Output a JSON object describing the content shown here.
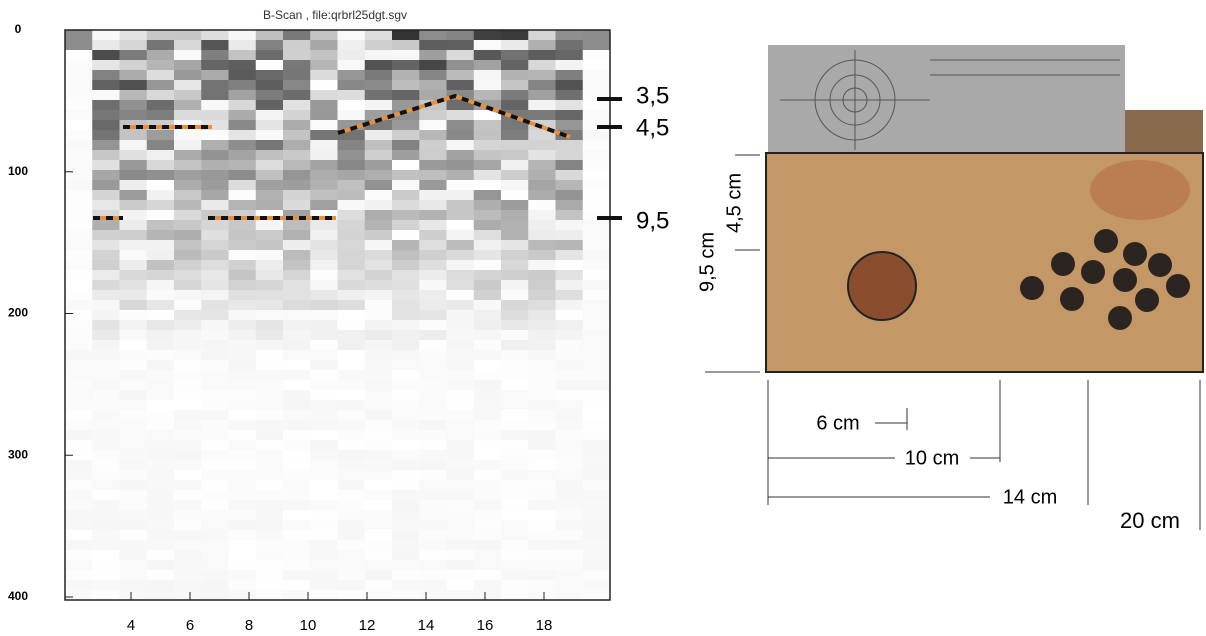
{
  "bscan": {
    "title": "B-Scan , file:qrbrl25dgt.sgv",
    "yticks": [
      0,
      100,
      200,
      300,
      400
    ],
    "xticks": [
      4,
      6,
      8,
      10,
      12,
      14,
      16,
      18
    ],
    "depth_marks": [
      "3,5",
      "4,5",
      "9,5"
    ]
  },
  "photo": {
    "dimensions": {
      "depth_45": "4,5 cm",
      "depth_95": "9,5 cm",
      "w6": "6 cm",
      "w10": "10 cm",
      "w14": "14 cm",
      "w20": "20 cm"
    }
  }
}
